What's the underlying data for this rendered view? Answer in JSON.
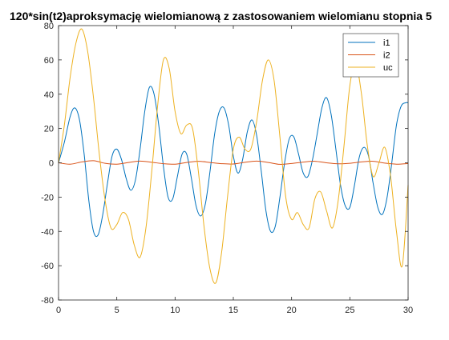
{
  "chart_data": {
    "type": "line",
    "title": "120*sin(t2)aproksymację wielomianową z zastosowaniem wielomianu stopnia 5",
    "xlabel": "",
    "ylabel": "",
    "xlim": [
      0,
      30
    ],
    "ylim": [
      -80,
      80
    ],
    "xticks": [
      0,
      5,
      10,
      15,
      20,
      25,
      30
    ],
    "yticks": [
      -80,
      -60,
      -40,
      -20,
      0,
      20,
      40,
      60,
      80
    ],
    "grid": false,
    "legend_position": "top-right",
    "series": [
      {
        "name": "i1",
        "color": "#0072BD",
        "x": [
          0,
          0.5,
          1,
          1.4,
          1.8,
          2.2,
          2.6,
          3.0,
          3.4,
          3.8,
          4.2,
          4.6,
          5.0,
          5.4,
          5.8,
          6.2,
          6.6,
          7.0,
          7.4,
          7.8,
          8.2,
          8.6,
          9.0,
          9.4,
          9.8,
          10.2,
          10.6,
          11.0,
          11.4,
          11.8,
          12.2,
          12.6,
          13.0,
          13.4,
          13.8,
          14.2,
          14.6,
          15.0,
          15.4,
          15.8,
          16.2,
          16.6,
          17.0,
          17.4,
          17.8,
          18.2,
          18.6,
          19.0,
          19.4,
          19.8,
          20.2,
          20.6,
          21.0,
          21.4,
          21.8,
          22.2,
          22.6,
          23.0,
          23.4,
          23.8,
          24.2,
          24.6,
          25.0,
          25.4,
          25.8,
          26.2,
          26.6,
          27.0,
          27.4,
          27.8,
          28.2,
          28.6,
          29.0,
          29.4,
          29.8,
          30.0
        ],
        "values": [
          0,
          12,
          27,
          32,
          25,
          5,
          -22,
          -40,
          -42,
          -30,
          -12,
          4,
          8,
          2,
          -9,
          -16,
          -10,
          8,
          30,
          44,
          40,
          22,
          -2,
          -20,
          -21,
          -8,
          5,
          5,
          -9,
          -25,
          -31,
          -24,
          -5,
          17,
          30,
          32,
          22,
          4,
          -6,
          2,
          18,
          25,
          16,
          -5,
          -28,
          -40,
          -37,
          -20,
          0,
          14,
          15,
          5,
          -6,
          -8,
          2,
          17,
          32,
          38,
          28,
          8,
          -13,
          -25,
          -26,
          -13,
          3,
          9,
          4,
          -12,
          -26,
          -30,
          -20,
          0,
          22,
          33,
          35,
          35
        ]
      },
      {
        "name": "i2",
        "color": "#D95319",
        "x": [
          0,
          1,
          2,
          3,
          4,
          5,
          6,
          7,
          8,
          9,
          10,
          11,
          12,
          13,
          14,
          15,
          16,
          17,
          18,
          19,
          20,
          21,
          22,
          23,
          24,
          25,
          26,
          27,
          28,
          29,
          30
        ],
        "values": [
          0,
          -0.8,
          0.5,
          1.2,
          -0.3,
          -0.8,
          0.2,
          1.0,
          0.3,
          -0.5,
          -0.8,
          0.2,
          0.9,
          0.2,
          -0.5,
          -0.7,
          0.3,
          1.0,
          0.2,
          -0.9,
          -0.4,
          0.4,
          0.9,
          0.0,
          -0.6,
          -0.3,
          0.5,
          0.9,
          -0.2,
          -0.8,
          -0.4
        ]
      },
      {
        "name": "uc",
        "color": "#EDB120",
        "x": [
          0,
          0.5,
          1.0,
          1.5,
          2.0,
          2.5,
          3.0,
          3.5,
          4.0,
          4.5,
          5.0,
          5.5,
          6.0,
          6.5,
          7.0,
          7.5,
          8.0,
          8.5,
          9.0,
          9.5,
          10.0,
          10.5,
          11.0,
          11.5,
          12.0,
          12.5,
          13.0,
          13.5,
          14.0,
          14.5,
          15.0,
          15.5,
          16.0,
          16.5,
          17.0,
          17.5,
          18.0,
          18.5,
          19.0,
          19.5,
          20.0,
          20.5,
          21.0,
          21.5,
          22.0,
          22.5,
          23.0,
          23.5,
          24.0,
          24.5,
          25.0,
          25.5,
          26.0,
          26.5,
          27.0,
          27.5,
          28.0,
          28.5,
          29.0,
          29.5,
          30.0
        ],
        "values": [
          0,
          22,
          50,
          70,
          78,
          65,
          38,
          5,
          -22,
          -38,
          -36,
          -29,
          -33,
          -48,
          -55,
          -38,
          -5,
          33,
          60,
          55,
          30,
          17,
          22,
          20,
          -5,
          -38,
          -62,
          -70,
          -52,
          -20,
          8,
          15,
          8,
          8,
          24,
          48,
          60,
          48,
          15,
          -20,
          -33,
          -29,
          -36,
          -38,
          -21,
          -17,
          -28,
          -38,
          -22,
          10,
          45,
          58,
          40,
          10,
          -8,
          0,
          9,
          -8,
          -40,
          -60,
          -13
        ]
      }
    ]
  }
}
